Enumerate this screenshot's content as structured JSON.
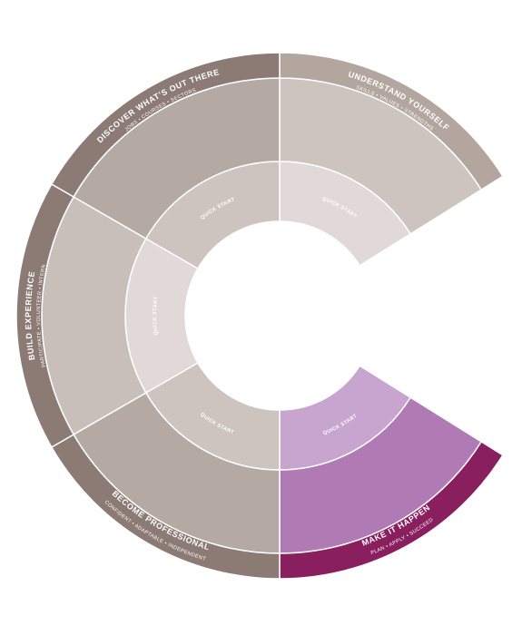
{
  "sections": [
    {
      "title": "UNDERSTAND YOURSELF",
      "subtitle": "SKILLS  •  VALUES  •  STRENGTHS",
      "quick_start": "QUICK START"
    },
    {
      "title": "MAKE IT HAPPEN",
      "subtitle": "PLAN  •  APPLY  •  SUCCEED",
      "quick_start": "QUICK START"
    },
    {
      "title": "BECOME PROFESSIONAL",
      "subtitle": "CONFIDENT  •  ADAPTABLE  •  INDEPENDENT",
      "quick_start": "QUICK START"
    },
    {
      "title": "BUILD EXPERIENCE",
      "subtitle": "PARTICIPATE  •  VOLUNTEER  •  INTERN",
      "quick_start": "QUICK START"
    },
    {
      "title": "DISCOVER WHAT’S OUT THERE",
      "subtitle": "JOBS  •  COURSES  •  SECTORS",
      "quick_start": "QUICK START"
    }
  ]
}
